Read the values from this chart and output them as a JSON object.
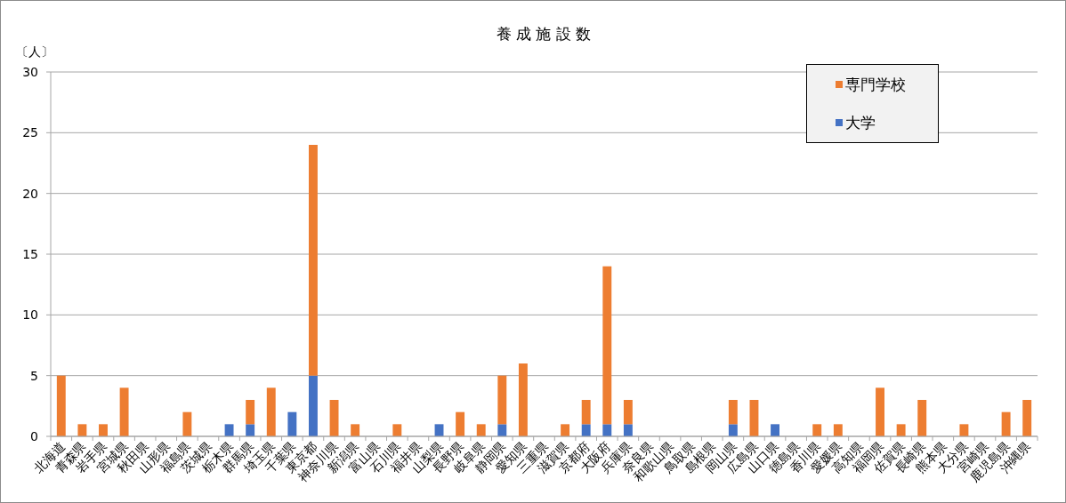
{
  "chart_data": {
    "type": "bar",
    "title": "養 成 施 設 数",
    "ylabel": "〔人〕",
    "categories": [
      "北海道",
      "青森県",
      "岩手県",
      "宮城県",
      "秋田県",
      "山形県",
      "福島県",
      "茨城県",
      "栃木県",
      "群馬県",
      "埼玉県",
      "千葉県",
      "東京都",
      "神奈川県",
      "新潟県",
      "富山県",
      "石川県",
      "福井県",
      "山梨県",
      "長野県",
      "岐阜県",
      "静岡県",
      "愛知県",
      "三重県",
      "滋賀県",
      "京都府",
      "大阪府",
      "兵庫県",
      "奈良県",
      "和歌山県",
      "鳥取県",
      "島根県",
      "岡山県",
      "広島県",
      "山口県",
      "徳島県",
      "香川県",
      "愛媛県",
      "高知県",
      "福岡県",
      "佐賀県",
      "長崎県",
      "熊本県",
      "大分県",
      "宮崎県",
      "鹿児島県",
      "沖縄県"
    ],
    "series": [
      {
        "name": "大学",
        "color": "#4472c4",
        "values": [
          0,
          0,
          0,
          0,
          0,
          0,
          0,
          0,
          1,
          1,
          0,
          2,
          5,
          0,
          0,
          0,
          0,
          0,
          1,
          0,
          0,
          1,
          0,
          0,
          0,
          1,
          1,
          1,
          0,
          0,
          0,
          0,
          1,
          0,
          1,
          0,
          0,
          0,
          0,
          0,
          0,
          0,
          0,
          0,
          0,
          0,
          0
        ]
      },
      {
        "name": "専門学校",
        "color": "#ed7d31",
        "values": [
          5,
          1,
          1,
          4,
          0,
          0,
          2,
          0,
          0,
          2,
          4,
          0,
          19,
          3,
          1,
          0,
          1,
          0,
          0,
          2,
          1,
          4,
          6,
          0,
          1,
          2,
          13,
          2,
          0,
          0,
          0,
          0,
          2,
          3,
          0,
          0,
          1,
          1,
          0,
          4,
          1,
          3,
          0,
          1,
          0,
          2,
          3
        ]
      }
    ],
    "stacked": true,
    "ylim": [
      0,
      30
    ],
    "yticks": [
      0,
      5,
      10,
      15,
      20,
      25,
      30
    ],
    "grid": "y",
    "legend": "top right"
  }
}
